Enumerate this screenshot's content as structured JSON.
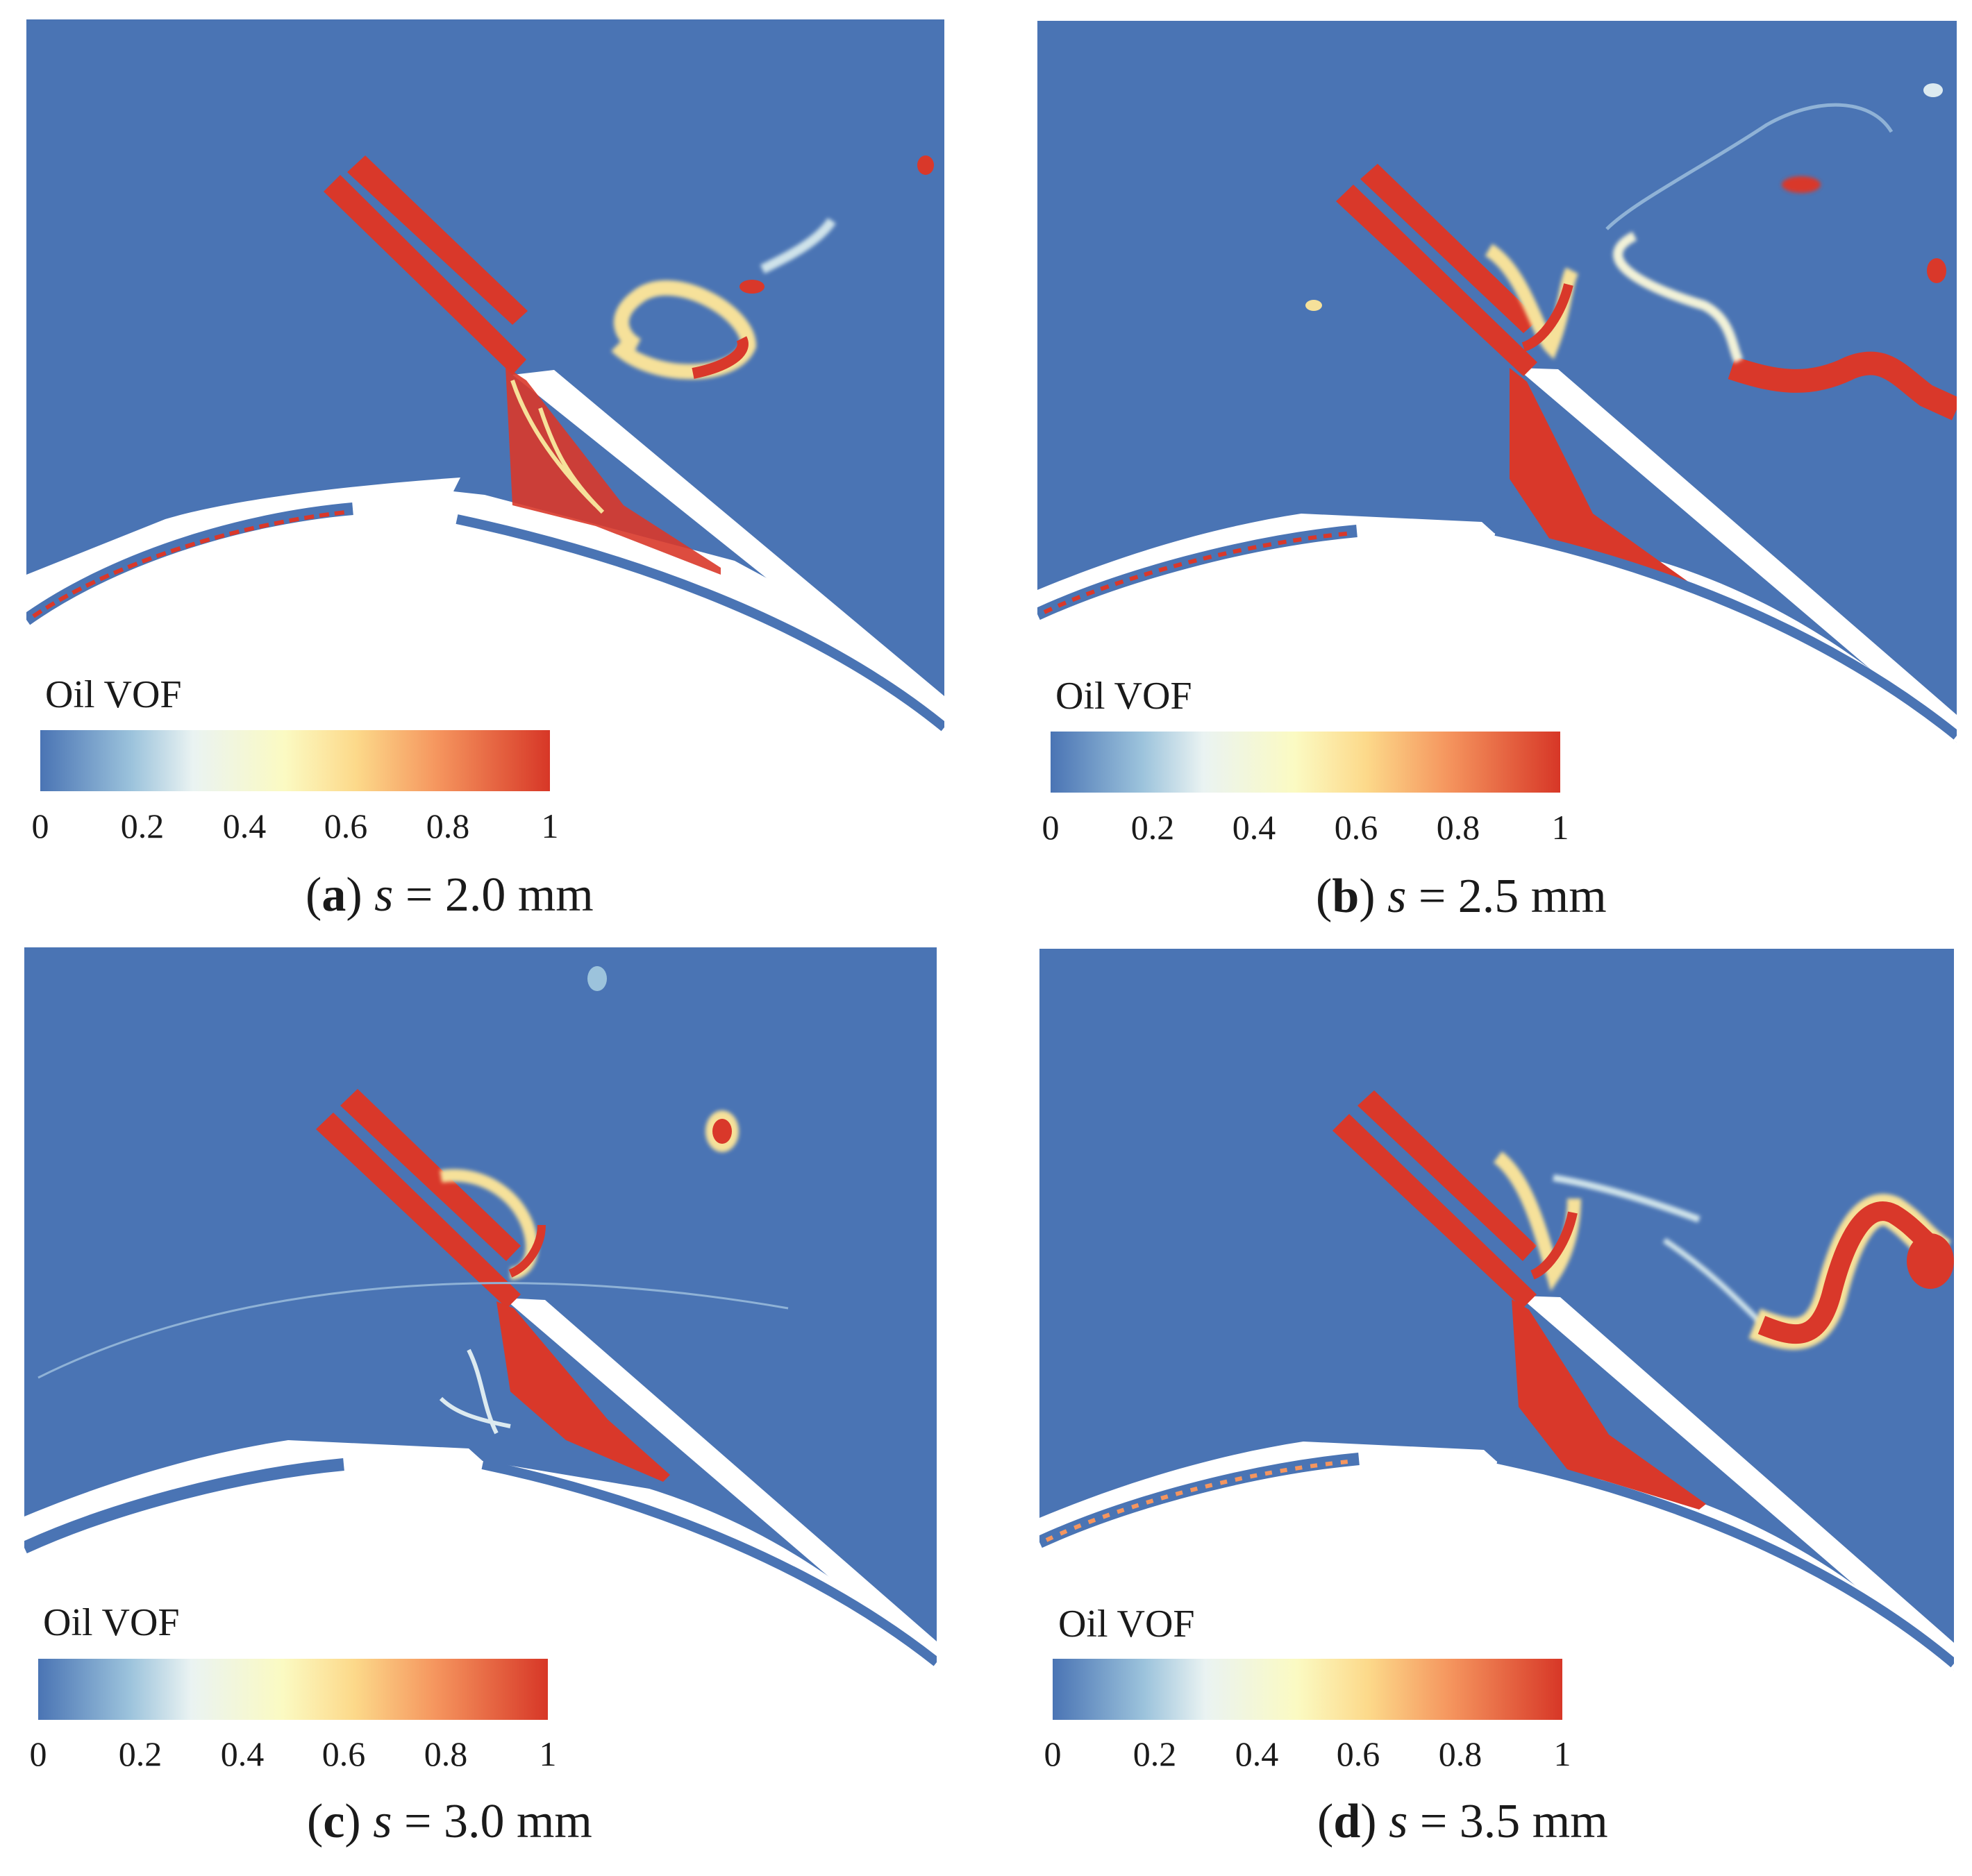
{
  "legend_title": "Oil VOF",
  "colorbar_ticks": [
    "0",
    "0.2",
    "0.4",
    "0.6",
    "0.8",
    "1"
  ],
  "colors": {
    "background_phase": "#4a74b4",
    "oil_phase": "#d9382a",
    "mid_phase": "#f6e19a",
    "solid": "#ffffff"
  },
  "panels": [
    {
      "letter": "a",
      "variable": "s",
      "equals": "=",
      "value": "2.0 mm"
    },
    {
      "letter": "b",
      "variable": "s",
      "equals": "=",
      "value": "2.5 mm"
    },
    {
      "letter": "c",
      "variable": "s",
      "equals": "=",
      "value": "3.0 mm"
    },
    {
      "letter": "d",
      "variable": "s",
      "equals": "=",
      "value": "3.5 mm"
    }
  ]
}
